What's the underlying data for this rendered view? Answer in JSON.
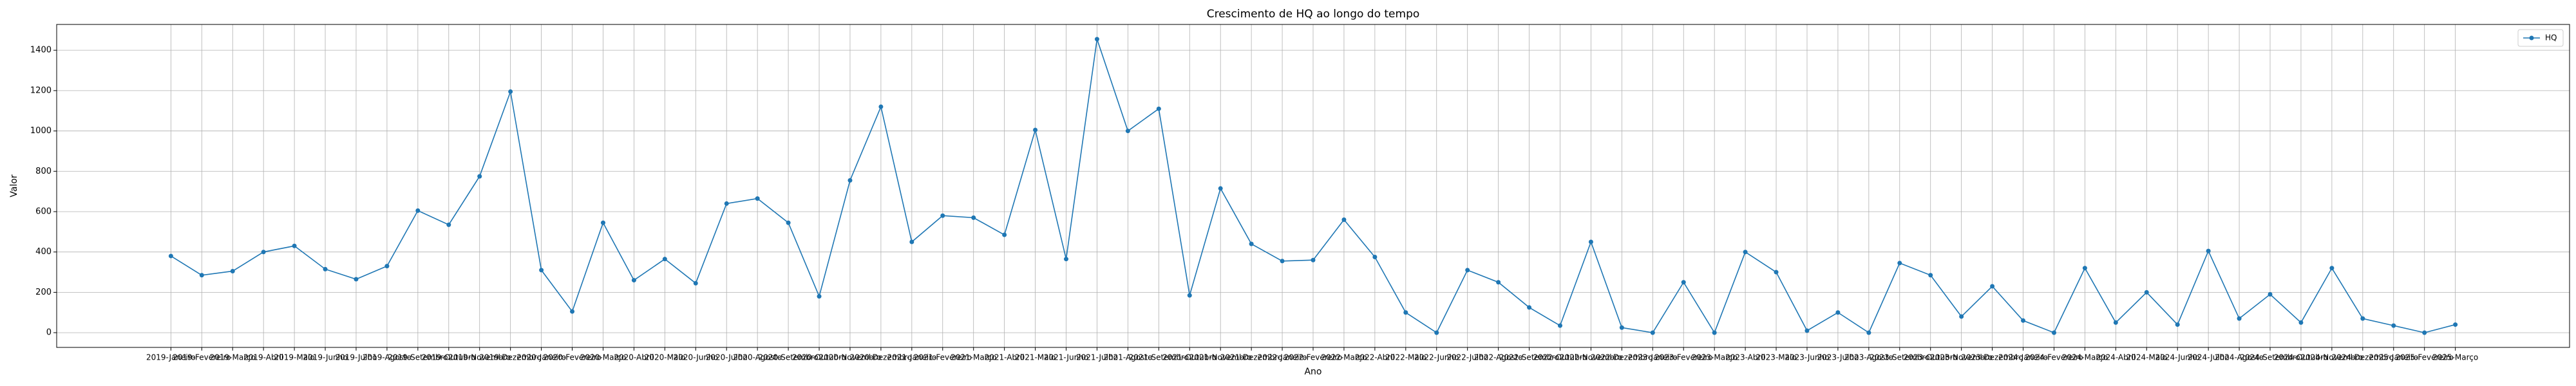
{
  "chart_data": {
    "type": "line",
    "title": "Crescimento de HQ ao longo do tempo",
    "x_label": "Ano",
    "y_label": "Valor",
    "categories": [
      "2019-Janeiro",
      "2019-Fevereiro",
      "2019-Março",
      "2019-Abril",
      "2019-Maio",
      "2019-Junho",
      "2019-Julho",
      "2019-Agosto",
      "2019-Setembro",
      "2019-Outubro",
      "2019-Novembro",
      "2019-Dezembro",
      "2020-Janeiro",
      "2020-Fevereiro",
      "2020-Março",
      "2020-Abril",
      "2020-Maio",
      "2020-Junho",
      "2020-Julho",
      "2020-Agosto",
      "2020-Setembro",
      "2020-Outubro",
      "2020-Novembro",
      "2020-Dezembro",
      "2021-Janeiro",
      "2021-Fevereiro",
      "2021-Março",
      "2021-Abril",
      "2021-Maio",
      "2021-Junho",
      "2021-Julho",
      "2021-Agosto",
      "2021-Setembro",
      "2021-Outubro",
      "2021-Novembro",
      "2021-Dezembro",
      "2022-Janeiro",
      "2022-Fevereiro",
      "2022-Março",
      "2022-Abril",
      "2022-Maio",
      "2022-Junho",
      "2022-Julho",
      "2022-Agosto",
      "2022-Setembro",
      "2022-Outubro",
      "2022-Novembro",
      "2022-Dezembro",
      "2023-Janeiro",
      "2023-Fevereiro",
      "2023-Março",
      "2023-Abril",
      "2023-Maio",
      "2023-Junho",
      "2023-Julho",
      "2023-Agosto",
      "2023-Setembro",
      "2023-Outubro",
      "2023-Novembro",
      "2023-Dezembro",
      "2024-Janeiro",
      "2024-Fevereiro",
      "2024-Março",
      "2024-Abril",
      "2024-Maio",
      "2024-Junho",
      "2024-Julho",
      "2024-Agosto",
      "2024-Setembro",
      "2024-Outubro",
      "2024-Novembro",
      "2024-Dezembro",
      "2025-Janeiro",
      "2025-Fevereiro",
      "2025-Março"
    ],
    "series": [
      {
        "name": "HQ",
        "color": "#1f77b4",
        "values": [
          380,
          285,
          305,
          400,
          430,
          315,
          265,
          330,
          605,
          535,
          775,
          1195,
          310,
          105,
          545,
          260,
          365,
          245,
          640,
          665,
          545,
          180,
          755,
          1120,
          450,
          580,
          570,
          485,
          1005,
          365,
          1455,
          1000,
          1110,
          185,
          715,
          440,
          355,
          360,
          560,
          375,
          100,
          0,
          310,
          250,
          125,
          35,
          450,
          25,
          0,
          250,
          0,
          400,
          300,
          10,
          100,
          0,
          345,
          285,
          80,
          230,
          60,
          0,
          320,
          50,
          200,
          40,
          405,
          70,
          190,
          50,
          320,
          70,
          35,
          0,
          40
        ]
      }
    ],
    "ylim": [
      -73,
      1528
    ],
    "yticks": [
      0,
      200,
      400,
      600,
      800,
      1000,
      1200,
      1400
    ],
    "grid": true,
    "legend": "upper right"
  }
}
